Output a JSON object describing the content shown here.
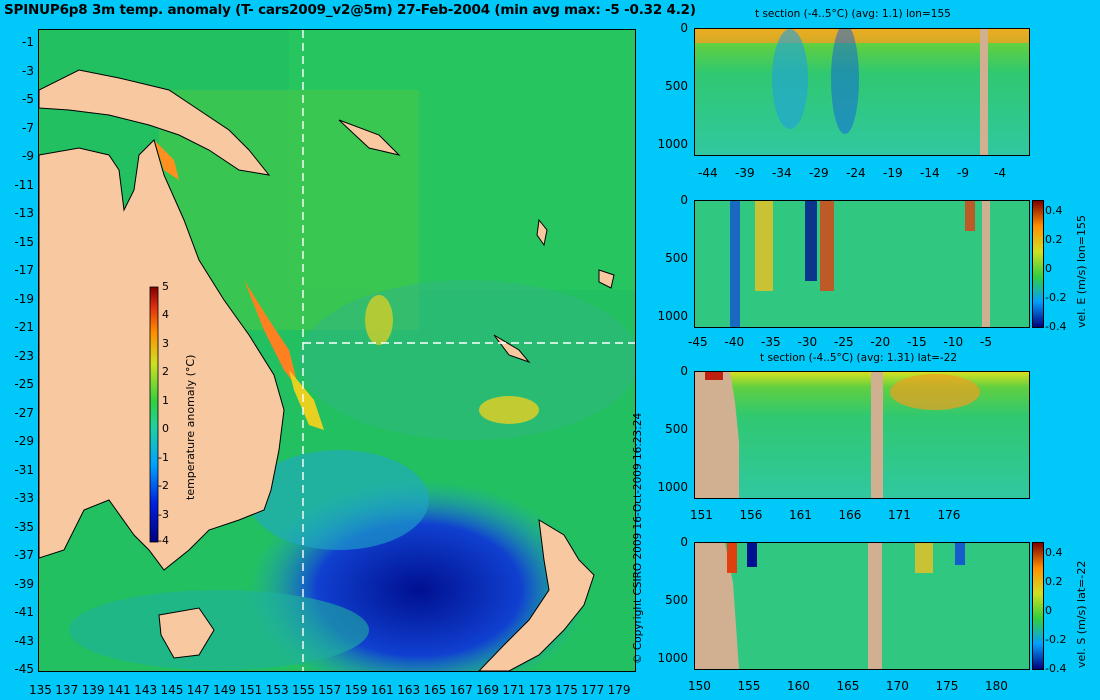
{
  "title": "SPINUP6p8 3m temp. anomaly (T- cars2009_v2@5m) 27-Feb-2004 (min avg max: -5 -0.32 4.2)",
  "copyright": "© Copyright CSIRO 2009  16-Oct-2009 16:23:24",
  "colors": {
    "background": "#00c8f8",
    "land": "#f8c8a0",
    "section_land": "#d0b090"
  },
  "chart_data": [
    {
      "type": "heatmap",
      "title": "SPINUP6p8 3m temp. anomaly (T- cars2009_v2@5m) 27-Feb-2004 (min avg max: -5 -0.32 4.2)",
      "x_ticks": [
        "135",
        "137",
        "139",
        "141",
        "143",
        "145",
        "147",
        "149",
        "151",
        "153",
        "155",
        "157",
        "159",
        "161",
        "163",
        "165",
        "167",
        "169",
        "171",
        "173",
        "175",
        "177",
        "179"
      ],
      "y_ticks": [
        "-1",
        "-3",
        "-5",
        "-7",
        "-9",
        "-11",
        "-13",
        "-15",
        "-17",
        "-19",
        "-21",
        "-23",
        "-25",
        "-27",
        "-29",
        "-31",
        "-33",
        "-35",
        "-37",
        "-39",
        "-41",
        "-43",
        "-45"
      ],
      "xlim": [
        135,
        180
      ],
      "ylim": [
        -45,
        0
      ],
      "section_lon": 155,
      "section_lat": -22,
      "colorbar": {
        "label": "temperature anomaly (°C)",
        "ticks": [
          "5",
          "4",
          "3",
          "2",
          "1",
          "0",
          "-1",
          "-2",
          "-3",
          "-4"
        ],
        "range": [
          -4,
          5
        ]
      }
    },
    {
      "type": "heatmap",
      "title": "t section (-4..5°C) (avg: 1.1) lon=155",
      "x_ticks": [
        "-44",
        "-39",
        "-34",
        "-29",
        "-24",
        "-19",
        "-14",
        "-9",
        "-4"
      ],
      "y_ticks": [
        "0",
        "500",
        "1000"
      ]
    },
    {
      "type": "heatmap",
      "title": "",
      "x_ticks": [
        "-45",
        "-40",
        "-35",
        "-30",
        "-25",
        "-20",
        "-15",
        "-10",
        "-5"
      ],
      "y_ticks": [
        "0",
        "500",
        "1000"
      ],
      "colorbar": {
        "label": "vel. E (m/s) lon=155",
        "ticks": [
          "0.4",
          "0.2",
          "0",
          "-0.2",
          "-0.4"
        ]
      }
    },
    {
      "type": "heatmap",
      "title": "t section (-4..5°C) (avg: 1.31) lat=-22",
      "x_ticks": [
        "151",
        "156",
        "161",
        "166",
        "171",
        "176"
      ],
      "y_ticks": [
        "0",
        "500",
        "1000"
      ]
    },
    {
      "type": "heatmap",
      "title": "",
      "x_ticks": [
        "150",
        "155",
        "160",
        "165",
        "170",
        "175",
        "180"
      ],
      "y_ticks": [
        "0",
        "500",
        "1000"
      ],
      "colorbar": {
        "label": "vel. S (m/s) lat=-22",
        "ticks": [
          "0.4",
          "0.2",
          "0",
          "-0.2",
          "-0.4"
        ]
      }
    }
  ]
}
